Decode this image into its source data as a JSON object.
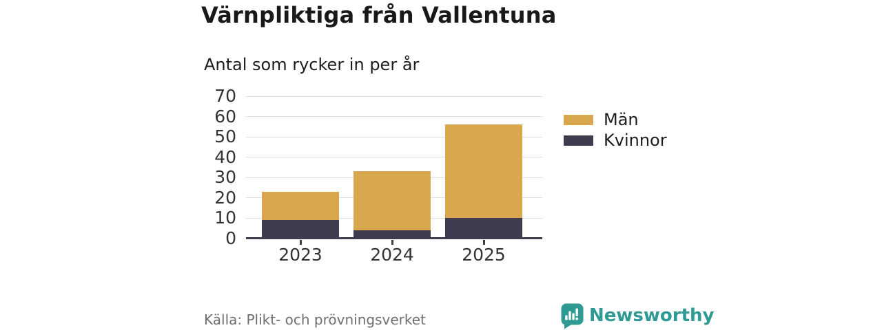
{
  "title": "Värnpliktiga från Vallentuna",
  "subtitle": "Antal som rycker in per år",
  "footer": {
    "source": "Källa: Plikt- och prövningsverket"
  },
  "brand": {
    "name": "Newsworthy",
    "color": "#2E9A93",
    "icon": "newsworthy-speech-bubble-bar-chart-icon"
  },
  "chart_data": {
    "type": "bar",
    "stacked": true,
    "title": "Värnpliktiga från Vallentuna",
    "subtitle": "Antal som rycker in per år",
    "categories": [
      "2023",
      "2024",
      "2025"
    ],
    "series": [
      {
        "name": "Män",
        "color": "#D9A84E",
        "values": [
          14,
          29,
          46
        ]
      },
      {
        "name": "Kvinnor",
        "color": "#3F3C50",
        "values": [
          9,
          4,
          10
        ]
      }
    ],
    "stack_totals": [
      23,
      33,
      56
    ],
    "stack_order_bottom_to_top": [
      "Kvinnor",
      "Män"
    ],
    "xlabel": "",
    "ylabel": "",
    "ylim": [
      0,
      70
    ],
    "yticks": [
      0,
      10,
      20,
      30,
      40,
      50,
      60,
      70
    ],
    "grid": true,
    "gridline_color": "#E0E0E0",
    "axis_line_color": "#3F3C50",
    "legend_position": "right"
  }
}
